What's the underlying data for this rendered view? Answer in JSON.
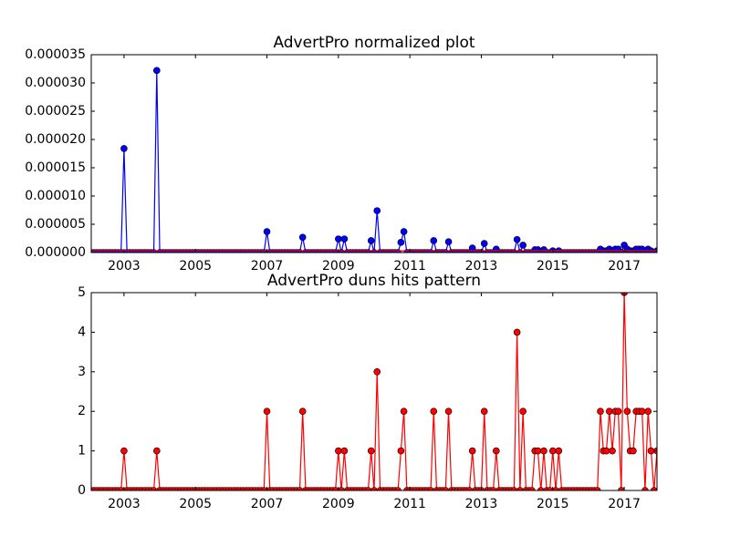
{
  "chart_data": [
    {
      "type": "line",
      "title": "AdvertPro normalized plot",
      "x": [
        2002.083,
        2002.167,
        2002.25,
        2002.333,
        2002.417,
        2002.5,
        2002.583,
        2002.667,
        2002.75,
        2002.833,
        2002.917,
        2003,
        2003.083,
        2003.167,
        2003.25,
        2003.333,
        2003.417,
        2003.5,
        2003.583,
        2003.667,
        2003.75,
        2003.833,
        2003.917,
        2004,
        2004.083,
        2004.167,
        2004.25,
        2004.333,
        2004.417,
        2004.5,
        2004.583,
        2004.667,
        2004.75,
        2004.833,
        2004.917,
        2005,
        2005.083,
        2005.167,
        2005.25,
        2005.333,
        2005.417,
        2005.5,
        2005.583,
        2005.667,
        2005.75,
        2005.833,
        2005.917,
        2006,
        2006.083,
        2006.167,
        2006.25,
        2006.333,
        2006.417,
        2006.5,
        2006.583,
        2006.667,
        2006.75,
        2006.833,
        2006.917,
        2007,
        2007.083,
        2007.167,
        2007.25,
        2007.333,
        2007.417,
        2007.5,
        2007.583,
        2007.667,
        2007.75,
        2007.833,
        2007.917,
        2008,
        2008.083,
        2008.167,
        2008.25,
        2008.333,
        2008.417,
        2008.5,
        2008.583,
        2008.667,
        2008.75,
        2008.833,
        2008.917,
        2009,
        2009.083,
        2009.167,
        2009.25,
        2009.333,
        2009.417,
        2009.5,
        2009.583,
        2009.667,
        2009.75,
        2009.833,
        2009.917,
        2010,
        2010.083,
        2010.167,
        2010.25,
        2010.333,
        2010.417,
        2010.5,
        2010.583,
        2010.667,
        2010.75,
        2010.833,
        2010.917,
        2011,
        2011.083,
        2011.167,
        2011.25,
        2011.333,
        2011.417,
        2011.5,
        2011.583,
        2011.667,
        2011.75,
        2011.833,
        2011.917,
        2012,
        2012.083,
        2012.167,
        2012.25,
        2012.333,
        2012.417,
        2012.5,
        2012.583,
        2012.667,
        2012.75,
        2012.833,
        2012.917,
        2013,
        2013.083,
        2013.167,
        2013.25,
        2013.333,
        2013.417,
        2013.5,
        2013.583,
        2013.667,
        2013.75,
        2013.833,
        2013.917,
        2014,
        2014.083,
        2014.167,
        2014.25,
        2014.333,
        2014.417,
        2014.5,
        2014.583,
        2014.667,
        2014.75,
        2014.833,
        2014.917,
        2015,
        2015.083,
        2015.167,
        2015.25,
        2015.333,
        2015.417,
        2015.5,
        2015.583,
        2015.667,
        2015.75,
        2015.833,
        2015.917,
        2016,
        2016.083,
        2016.167,
        2016.25,
        2016.333,
        2016.417,
        2016.5,
        2016.583,
        2016.667,
        2016.75,
        2016.833,
        2016.917,
        2017,
        2017.083,
        2017.167,
        2017.25,
        2017.333,
        2017.417,
        2017.5,
        2017.583,
        2017.667,
        2017.75,
        2017.833,
        2017.917
      ],
      "series": [
        {
          "color": "#0000ff",
          "marker": "o",
          "values": [
            0,
            0,
            0,
            0,
            0,
            0,
            0,
            0,
            0,
            0,
            0,
            1.84e-05,
            0,
            0,
            0,
            0,
            0,
            0,
            0,
            0,
            0,
            0,
            3.22e-05,
            0,
            0,
            0,
            0,
            0,
            0,
            0,
            0,
            0,
            0,
            0,
            0,
            0,
            0,
            0,
            0,
            0,
            0,
            0,
            0,
            0,
            0,
            0,
            0,
            0,
            0,
            0,
            0,
            0,
            0,
            0,
            0,
            0,
            0,
            0,
            0,
            3.7e-06,
            0,
            0,
            0,
            0,
            0,
            0,
            0,
            0,
            0,
            0,
            0,
            2.7e-06,
            0,
            0,
            0,
            0,
            0,
            0,
            0,
            0,
            0,
            0,
            0,
            2.4e-06,
            0,
            2.4e-06,
            0,
            0,
            0,
            0,
            0,
            0,
            0,
            0,
            2.1e-06,
            0,
            7.4e-06,
            0,
            0,
            0,
            0,
            0,
            0,
            0,
            1.8e-06,
            3.7e-06,
            0,
            0,
            0,
            0,
            0,
            0,
            0,
            0,
            0,
            2.1e-06,
            0,
            0,
            0,
            0,
            1.9e-06,
            0,
            0,
            0,
            0,
            0,
            0,
            0,
            8e-07,
            0,
            0,
            0,
            1.6e-06,
            0,
            0,
            0,
            6e-07,
            0,
            0,
            0,
            0,
            0,
            0,
            2.3e-06,
            0,
            1.3e-06,
            0,
            0,
            0,
            5e-07,
            5e-07,
            0,
            5e-07,
            0,
            0,
            3e-07,
            0,
            3e-07,
            0,
            0,
            0,
            0,
            0,
            0,
            0,
            0,
            0,
            0,
            0,
            0,
            0,
            6e-07,
            3e-07,
            3e-07,
            6e-07,
            3e-07,
            6e-07,
            6e-07,
            0,
            1.3e-06,
            6e-07,
            3e-07,
            3e-07,
            6e-07,
            6e-07,
            6e-07,
            0,
            6e-07,
            3e-07,
            0,
            3e-07
          ]
        },
        {
          "color": "#ff0000",
          "x": [
            2002.083,
            2017.917
          ],
          "values": [
            3e-07,
            3e-07
          ]
        }
      ],
      "xlim": [
        2002.083,
        2017.917
      ],
      "xticks": [
        2003,
        2005,
        2007,
        2009,
        2011,
        2013,
        2015,
        2017
      ],
      "ylim": [
        0,
        3.5e-05
      ],
      "yticks": [
        {
          "value": 0,
          "label": "0.000000"
        },
        {
          "value": 5e-06,
          "label": "0.000005"
        },
        {
          "value": 1e-05,
          "label": "0.000010"
        },
        {
          "value": 1.5e-05,
          "label": "0.000015"
        },
        {
          "value": 2e-05,
          "label": "0.000020"
        },
        {
          "value": 2.5e-05,
          "label": "0.000025"
        },
        {
          "value": 3e-05,
          "label": "0.000030"
        },
        {
          "value": 3.5e-05,
          "label": "0.000035"
        }
      ]
    },
    {
      "type": "line",
      "title": "AdvertPro duns hits pattern",
      "x": [
        2002.083,
        2002.167,
        2002.25,
        2002.333,
        2002.417,
        2002.5,
        2002.583,
        2002.667,
        2002.75,
        2002.833,
        2002.917,
        2003,
        2003.083,
        2003.167,
        2003.25,
        2003.333,
        2003.417,
        2003.5,
        2003.583,
        2003.667,
        2003.75,
        2003.833,
        2003.917,
        2004,
        2004.083,
        2004.167,
        2004.25,
        2004.333,
        2004.417,
        2004.5,
        2004.583,
        2004.667,
        2004.75,
        2004.833,
        2004.917,
        2005,
        2005.083,
        2005.167,
        2005.25,
        2005.333,
        2005.417,
        2005.5,
        2005.583,
        2005.667,
        2005.75,
        2005.833,
        2005.917,
        2006,
        2006.083,
        2006.167,
        2006.25,
        2006.333,
        2006.417,
        2006.5,
        2006.583,
        2006.667,
        2006.75,
        2006.833,
        2006.917,
        2007,
        2007.083,
        2007.167,
        2007.25,
        2007.333,
        2007.417,
        2007.5,
        2007.583,
        2007.667,
        2007.75,
        2007.833,
        2007.917,
        2008,
        2008.083,
        2008.167,
        2008.25,
        2008.333,
        2008.417,
        2008.5,
        2008.583,
        2008.667,
        2008.75,
        2008.833,
        2008.917,
        2009,
        2009.083,
        2009.167,
        2009.25,
        2009.333,
        2009.417,
        2009.5,
        2009.583,
        2009.667,
        2009.75,
        2009.833,
        2009.917,
        2010,
        2010.083,
        2010.167,
        2010.25,
        2010.333,
        2010.417,
        2010.5,
        2010.583,
        2010.667,
        2010.75,
        2010.833,
        2010.917,
        2011,
        2011.083,
        2011.167,
        2011.25,
        2011.333,
        2011.417,
        2011.5,
        2011.583,
        2011.667,
        2011.75,
        2011.833,
        2011.917,
        2012,
        2012.083,
        2012.167,
        2012.25,
        2012.333,
        2012.417,
        2012.5,
        2012.583,
        2012.667,
        2012.75,
        2012.833,
        2012.917,
        2013,
        2013.083,
        2013.167,
        2013.25,
        2013.333,
        2013.417,
        2013.5,
        2013.583,
        2013.667,
        2013.75,
        2013.833,
        2013.917,
        2014,
        2014.083,
        2014.167,
        2014.25,
        2014.333,
        2014.417,
        2014.5,
        2014.583,
        2014.667,
        2014.75,
        2014.833,
        2014.917,
        2015,
        2015.083,
        2015.167,
        2015.25,
        2015.333,
        2015.417,
        2015.5,
        2015.583,
        2015.667,
        2015.75,
        2015.833,
        2015.917,
        2016,
        2016.083,
        2016.167,
        2016.25,
        2016.333,
        2016.417,
        2016.5,
        2016.583,
        2016.667,
        2016.75,
        2016.833,
        2016.917,
        2017,
        2017.083,
        2017.167,
        2017.25,
        2017.333,
        2017.417,
        2017.5,
        2017.583,
        2017.667,
        2017.75,
        2017.833,
        2017.917
      ],
      "series": [
        {
          "color": "#ff0000",
          "marker": "o",
          "values": [
            0,
            0,
            0,
            0,
            0,
            0,
            0,
            0,
            0,
            0,
            0,
            1,
            0,
            0,
            0,
            0,
            0,
            0,
            0,
            0,
            0,
            0,
            1,
            0,
            0,
            0,
            0,
            0,
            0,
            0,
            0,
            0,
            0,
            0,
            0,
            0,
            0,
            0,
            0,
            0,
            0,
            0,
            0,
            0,
            0,
            0,
            0,
            0,
            0,
            0,
            0,
            0,
            0,
            0,
            0,
            0,
            0,
            0,
            0,
            2,
            0,
            0,
            0,
            0,
            0,
            0,
            0,
            0,
            0,
            0,
            0,
            2,
            0,
            0,
            0,
            0,
            0,
            0,
            0,
            0,
            0,
            0,
            0,
            1,
            0,
            1,
            0,
            0,
            0,
            0,
            0,
            0,
            0,
            0,
            1,
            0,
            3,
            0,
            0,
            0,
            0,
            0,
            0,
            0,
            1,
            2,
            0,
            0,
            0,
            0,
            0,
            0,
            0,
            0,
            0,
            2,
            0,
            0,
            0,
            0,
            2,
            0,
            0,
            0,
            0,
            0,
            0,
            0,
            1,
            0,
            0,
            0,
            2,
            0,
            0,
            0,
            1,
            0,
            0,
            0,
            0,
            0,
            0,
            4,
            0,
            2,
            0,
            0,
            0,
            1,
            1,
            0,
            1,
            0,
            0,
            1,
            0,
            1,
            0,
            0,
            0,
            0,
            0,
            0,
            0,
            0,
            0,
            0,
            0,
            0,
            0,
            2,
            1,
            1,
            2,
            1,
            2,
            2,
            0,
            5,
            2,
            1,
            1,
            2,
            2,
            2,
            0,
            2,
            1,
            0,
            1
          ]
        }
      ],
      "xlim": [
        2002.083,
        2017.917
      ],
      "xticks": [
        2003,
        2005,
        2007,
        2009,
        2011,
        2013,
        2015,
        2017
      ],
      "ylim": [
        0,
        5
      ],
      "yticks": [
        0,
        1,
        2,
        3,
        4,
        5
      ]
    }
  ]
}
